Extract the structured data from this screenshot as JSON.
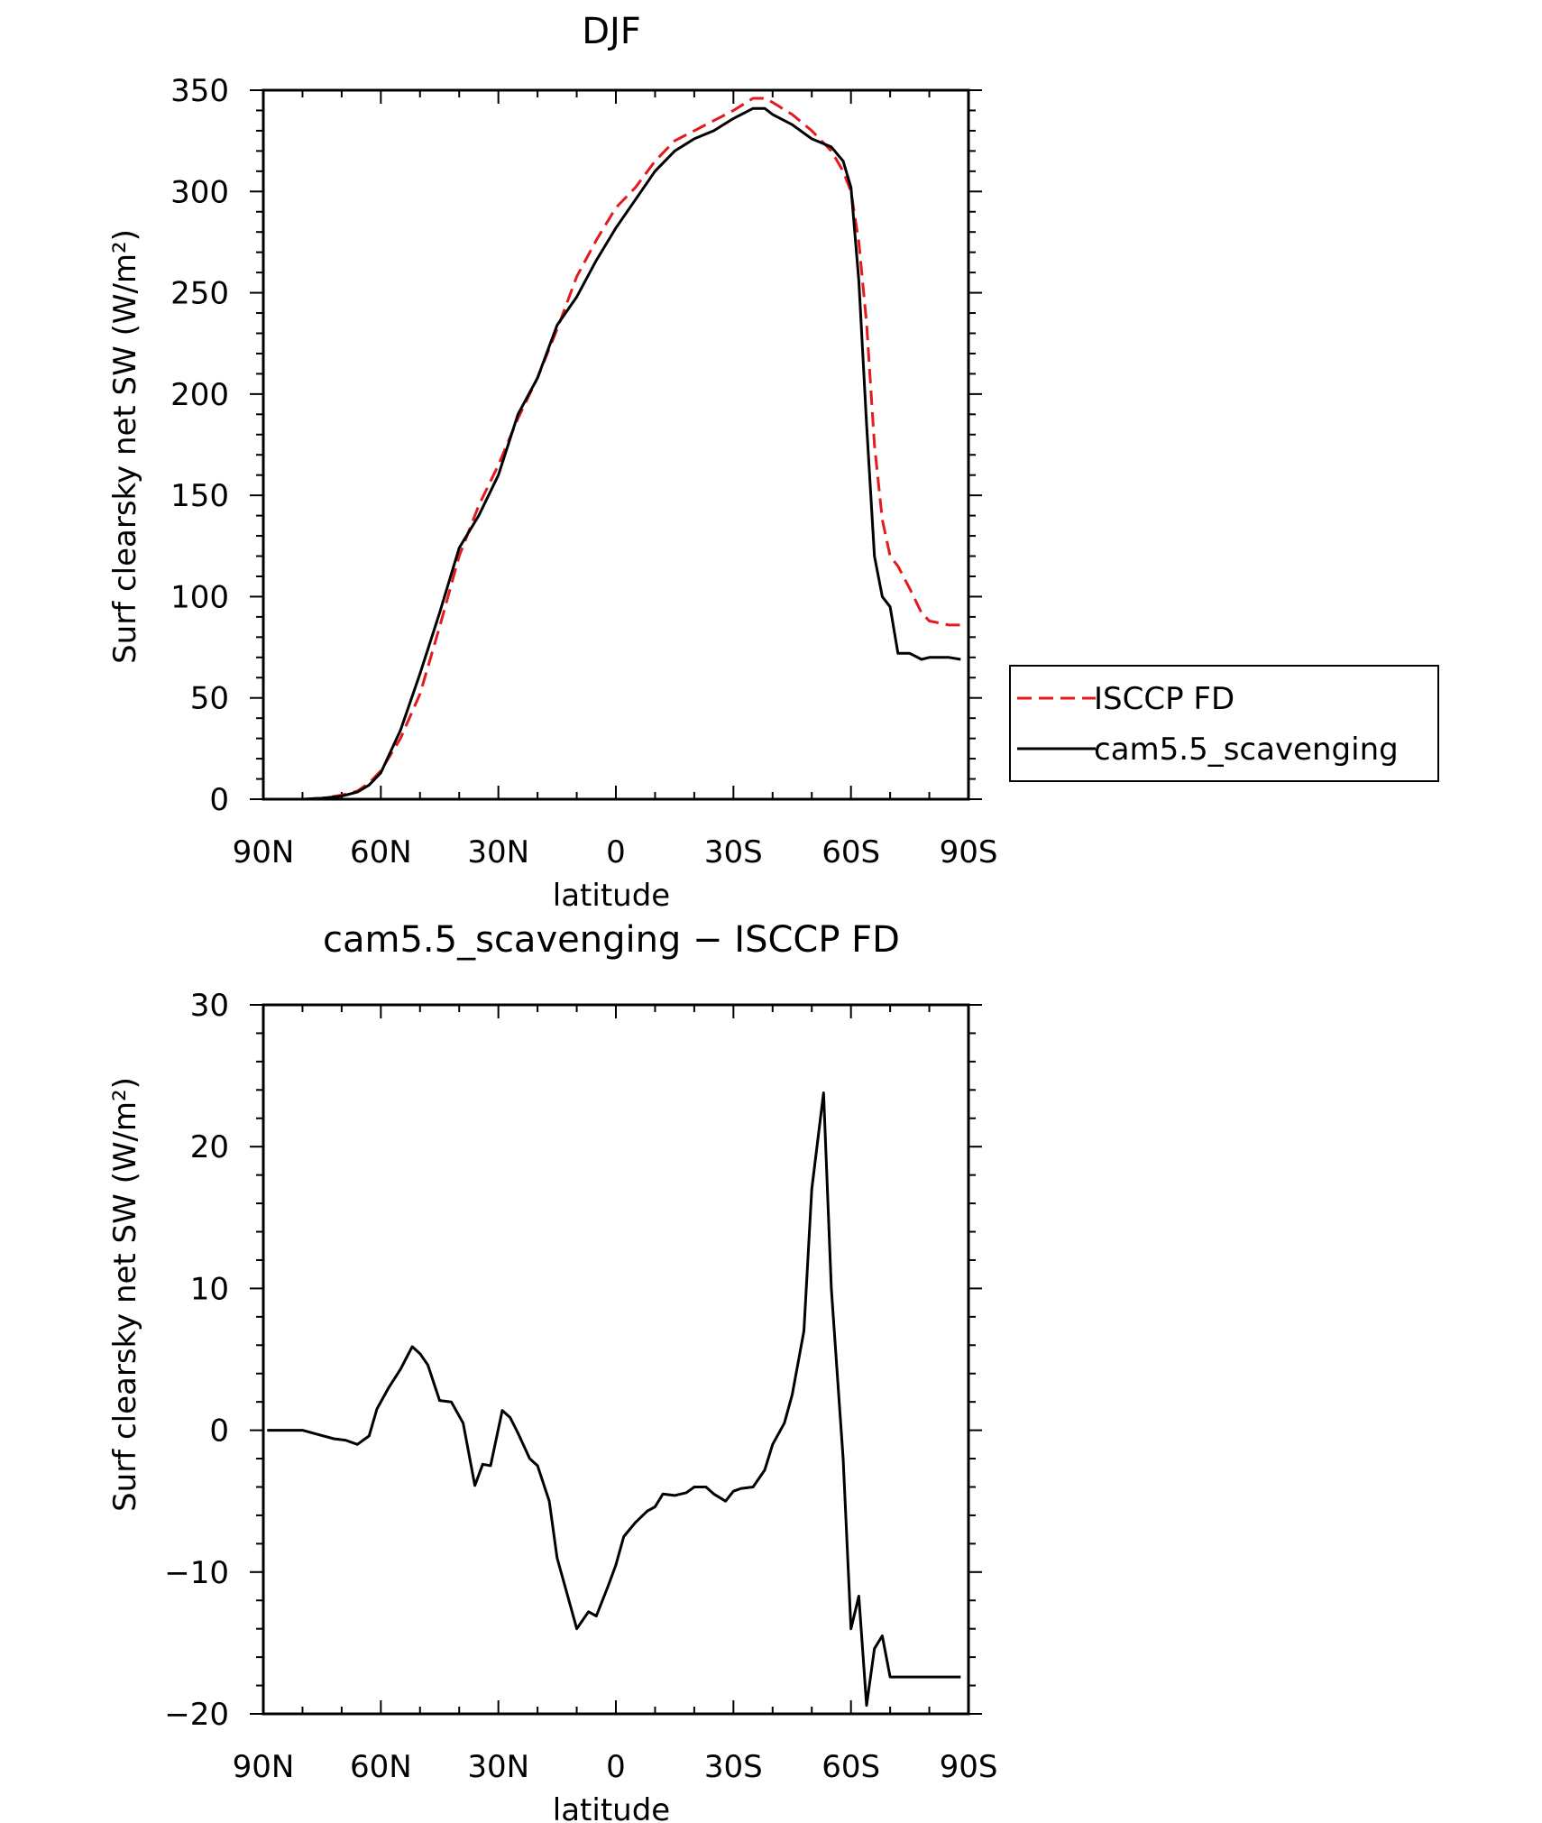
{
  "chart_data": [
    {
      "type": "line",
      "title": "DJF",
      "xlabel": "latitude",
      "ylabel": "Surf clearsky net SW (W/m²)",
      "xlim": [
        -90,
        90
      ],
      "ylim": [
        0,
        350
      ],
      "xticks": [
        {
          "value": -90,
          "label": "90N"
        },
        {
          "value": -60,
          "label": "60N"
        },
        {
          "value": -30,
          "label": "30N"
        },
        {
          "value": 0,
          "label": "0"
        },
        {
          "value": 30,
          "label": "30S"
        },
        {
          "value": 60,
          "label": "60S"
        },
        {
          "value": 90,
          "label": "90S"
        }
      ],
      "yticks": [
        0,
        50,
        100,
        150,
        200,
        250,
        300,
        350
      ],
      "legend_position": "outside-right",
      "series": [
        {
          "name": "ISCCP FD",
          "color": "#e41a1c",
          "dash": "dashed",
          "x": [
            -89,
            -85,
            -80,
            -75,
            -70,
            -66,
            -63,
            -60,
            -55,
            -50,
            -45,
            -40,
            -35,
            -30,
            -25,
            -20,
            -15,
            -10,
            -5,
            0,
            5,
            10,
            15,
            20,
            25,
            30,
            35,
            38,
            40,
            45,
            50,
            55,
            58,
            60,
            62,
            64,
            66,
            68,
            70,
            72,
            75,
            78,
            80,
            85,
            88
          ],
          "y": [
            0,
            0,
            0,
            0.5,
            2,
            4,
            8,
            14,
            30,
            52,
            85,
            120,
            145,
            165,
            188,
            208,
            232,
            258,
            276,
            292,
            302,
            315,
            325,
            330,
            335,
            340,
            346,
            346,
            344,
            338,
            330,
            320,
            310,
            300,
            275,
            235,
            175,
            138,
            120,
            115,
            104,
            92,
            88,
            86,
            86
          ]
        },
        {
          "name": "cam5.5_scavenging",
          "color": "#000000",
          "dash": "solid",
          "x": [
            -89,
            -85,
            -80,
            -75,
            -70,
            -66,
            -63,
            -60,
            -55,
            -50,
            -45,
            -40,
            -35,
            -30,
            -25,
            -20,
            -15,
            -10,
            -5,
            0,
            5,
            10,
            15,
            20,
            25,
            30,
            35,
            38,
            40,
            45,
            50,
            55,
            58,
            60,
            62,
            64,
            66,
            68,
            70,
            72,
            75,
            78,
            80,
            85,
            88
          ],
          "y": [
            0,
            0,
            0,
            0.5,
            1.5,
            3.5,
            7,
            13,
            34,
            62,
            92,
            124,
            140,
            160,
            190,
            208,
            234,
            248,
            266,
            282,
            296,
            310,
            320,
            326,
            330,
            336,
            341,
            341,
            338,
            333,
            326,
            322,
            315,
            302,
            256,
            185,
            120,
            100,
            95,
            72,
            72,
            69,
            70,
            70,
            69
          ]
        }
      ]
    },
    {
      "type": "line",
      "title": "cam5.5_scavenging − ISCCP FD",
      "xlabel": "latitude",
      "ylabel": "Surf clearsky net SW (W/m²)",
      "xlim": [
        -90,
        90
      ],
      "ylim": [
        -20,
        30
      ],
      "xticks": [
        {
          "value": -90,
          "label": "90N"
        },
        {
          "value": -60,
          "label": "60N"
        },
        {
          "value": -30,
          "label": "30N"
        },
        {
          "value": 0,
          "label": "0"
        },
        {
          "value": 30,
          "label": "30S"
        },
        {
          "value": 60,
          "label": "60S"
        },
        {
          "value": 90,
          "label": "90S"
        }
      ],
      "yticks": [
        -20,
        -10,
        0,
        10,
        20,
        30
      ],
      "series": [
        {
          "color": "#000000",
          "dash": "solid",
          "x": [
            -89,
            -84,
            -80,
            -76,
            -72,
            -69,
            -66,
            -63,
            -61,
            -58,
            -55,
            -52,
            -50,
            -48,
            -45,
            -42,
            -39,
            -36,
            -34,
            -32,
            -29,
            -27,
            -25,
            -22,
            -20,
            -17,
            -15,
            -12,
            -10,
            -7,
            -5,
            -2,
            0,
            2,
            5,
            8,
            10,
            12,
            15,
            18,
            20,
            23,
            25,
            28,
            30,
            32,
            35,
            38,
            40,
            43,
            45,
            48,
            50,
            53,
            55,
            58,
            60,
            62,
            64,
            66,
            68,
            70,
            72,
            74,
            76,
            78,
            80,
            82,
            84,
            86,
            88
          ],
          "y": [
            0,
            0,
            0,
            -0.3,
            -0.6,
            -0.7,
            -1,
            -0.4,
            1.5,
            3,
            4.3,
            5.9,
            5.4,
            4.6,
            2.1,
            2,
            0.5,
            -3.9,
            -2.4,
            -2.5,
            1.4,
            0.9,
            -0.2,
            -2,
            -2.5,
            -5,
            -9,
            -12,
            -14,
            -12.8,
            -13.1,
            -11,
            -9.5,
            -7.5,
            -6.5,
            -5.7,
            -5.4,
            -4.5,
            -4.6,
            -4.4,
            -4,
            -4,
            -4.5,
            -5,
            -4.3,
            -4.1,
            -4,
            -2.8,
            -1,
            0.5,
            2.5,
            7,
            17,
            23.8,
            10,
            -2,
            -14,
            -11.7,
            -19.4,
            -15.4,
            -14.5,
            -17.4,
            -17.4,
            -17.4,
            -17.4,
            -17.4,
            -17.4,
            -17.4,
            -17.4,
            -17.4,
            -17.4
          ]
        }
      ]
    }
  ]
}
